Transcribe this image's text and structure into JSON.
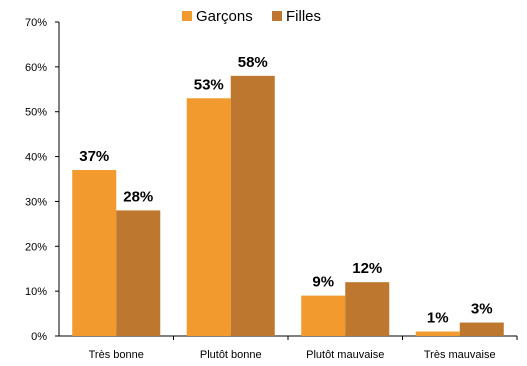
{
  "chart_data": {
    "type": "bar",
    "categories": [
      "Très bonne",
      "Plutôt bonne",
      "Plutôt mauvaise",
      "Très mauvaise"
    ],
    "series": [
      {
        "name": "Garçons",
        "values": [
          37,
          53,
          9,
          1
        ],
        "labels": [
          "37%",
          "53%",
          "9%",
          "1%"
        ],
        "color": "#F29A2E"
      },
      {
        "name": "Filles",
        "values": [
          28,
          58,
          12,
          3
        ],
        "labels": [
          "28%",
          "58%",
          "12%",
          "3%"
        ],
        "color": "#BE772F"
      }
    ],
    "yticks": [
      "0%",
      "10%",
      "20%",
      "30%",
      "40%",
      "50%",
      "60%",
      "70%"
    ],
    "ylim": [
      0,
      70
    ],
    "title": "",
    "xlabel": "",
    "ylabel": "",
    "grid": false,
    "legend": "top"
  }
}
